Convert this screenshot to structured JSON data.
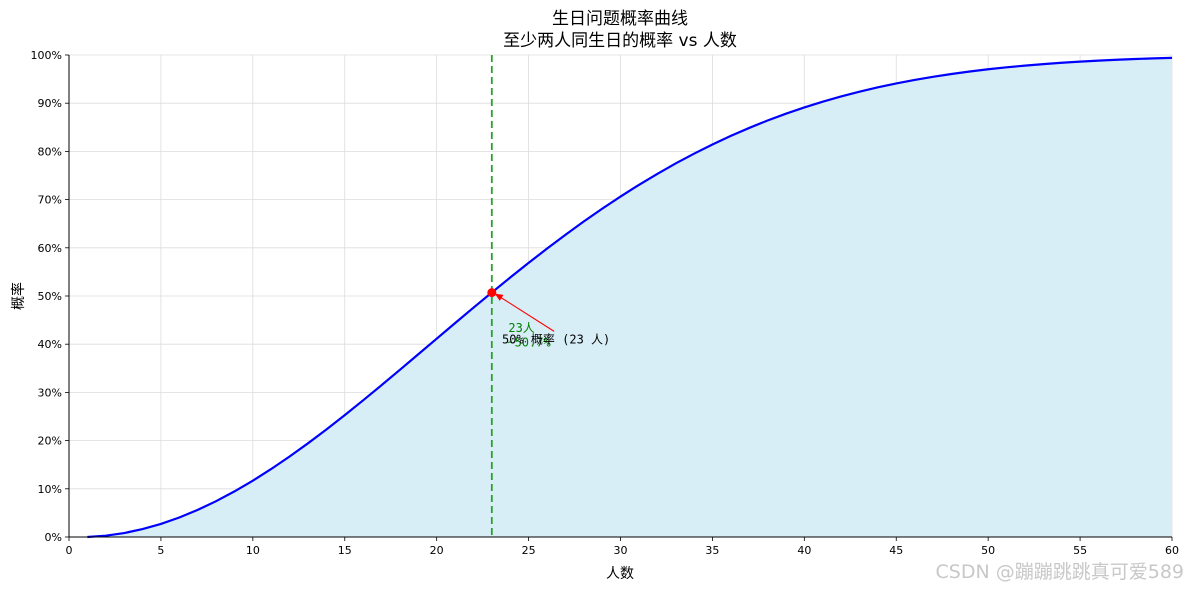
{
  "chart_data": {
    "type": "area",
    "title": "生日问题概率曲线",
    "subtitle": "至少两人同生日的概率 vs 人数",
    "xlabel": "人数",
    "ylabel": "概率",
    "xlim": [
      0,
      60
    ],
    "ylim": [
      0,
      1
    ],
    "grid": true,
    "x_ticks": [
      "0",
      "5",
      "10",
      "15",
      "20",
      "25",
      "30",
      "35",
      "40",
      "45",
      "50",
      "55",
      "60"
    ],
    "y_ticks": [
      "0%",
      "10%",
      "20%",
      "30%",
      "40%",
      "50%",
      "60%",
      "70%",
      "80%",
      "90%",
      "100%"
    ],
    "series": [
      {
        "color": "#0000ff",
        "fill_color": "#d8eef7",
        "x": [
          1,
          2,
          3,
          4,
          5,
          6,
          7,
          8,
          9,
          10,
          11,
          12,
          13,
          14,
          15,
          16,
          17,
          18,
          19,
          20,
          21,
          22,
          23,
          24,
          25,
          26,
          27,
          28,
          29,
          30,
          31,
          32,
          33,
          34,
          35,
          36,
          37,
          38,
          39,
          40,
          41,
          42,
          43,
          44,
          45,
          46,
          47,
          48,
          49,
          50,
          51,
          52,
          53,
          54,
          55,
          56,
          57,
          58,
          59,
          60
        ],
        "y": [
          0,
          0.0027,
          0.0082,
          0.0164,
          0.0271,
          0.0405,
          0.0562,
          0.0743,
          0.0946,
          0.1169,
          0.1411,
          0.167,
          0.1944,
          0.2231,
          0.2529,
          0.2836,
          0.315,
          0.3469,
          0.3791,
          0.4114,
          0.4437,
          0.4757,
          0.5073,
          0.5383,
          0.5687,
          0.5982,
          0.6269,
          0.6545,
          0.681,
          0.7063,
          0.7305,
          0.7533,
          0.775,
          0.7953,
          0.8144,
          0.8322,
          0.8487,
          0.8641,
          0.8782,
          0.8912,
          0.9032,
          0.914,
          0.9239,
          0.9329,
          0.941,
          0.9483,
          0.9548,
          0.9606,
          0.9658,
          0.9704,
          0.9744,
          0.978,
          0.9811,
          0.9839,
          0.9863,
          0.9883,
          0.9901,
          0.9917,
          0.993,
          0.9941
        ]
      }
    ],
    "vline": {
      "x": 23,
      "color": "#2ca02c"
    },
    "marker": {
      "x": 23,
      "y": 0.507,
      "color": "#ff0000"
    },
    "annotation": {
      "text": "50% 概率 (23 人)",
      "x_text": 26.5,
      "y_text": 0.41
    },
    "side_label": {
      "line1": "23人",
      "line2": "~50.7%",
      "x": 23.9,
      "y1": 0.425,
      "y2": 0.395
    }
  },
  "watermark": "CSDN @蹦蹦跳跳真可爱589"
}
